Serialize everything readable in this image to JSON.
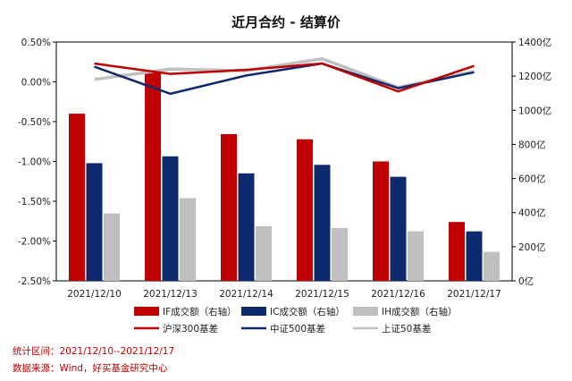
{
  "chart_data": {
    "type": "bar",
    "title": "近月合约 - 结算价",
    "categories": [
      "2021/12/10",
      "2021/12/13",
      "2021/12/14",
      "2021/12/15",
      "2021/12/16",
      "2021/12/17"
    ],
    "y_left": {
      "min": -2.5,
      "max": 0.5,
      "step": 0.5,
      "ticks": [
        "0.50%",
        "0.00%",
        "-0.50%",
        "-1.00%",
        "-1.50%",
        "-2.00%",
        "-2.50%"
      ]
    },
    "y_right": {
      "min": 0,
      "max": 1400,
      "step": 200,
      "ticks": [
        "1400亿",
        "1200亿",
        "1000亿",
        "800亿",
        "600亿",
        "400亿",
        "200亿",
        "0亿"
      ]
    },
    "bar_series": [
      {
        "name": "IF成交额（右轴）",
        "color": "#c00000",
        "values": [
          980,
          1230,
          860,
          830,
          700,
          345
        ]
      },
      {
        "name": "IC成交额（右轴）",
        "color": "#0d2a6e",
        "values": [
          690,
          730,
          630,
          680,
          610,
          290
        ]
      },
      {
        "name": "IH成交额（右轴）",
        "color": "#bfbfbf",
        "values": [
          395,
          485,
          320,
          310,
          290,
          170
        ]
      }
    ],
    "line_series": [
      {
        "name": "沪深300基差",
        "color": "#c00000",
        "values": [
          0.23,
          0.1,
          0.15,
          0.23,
          -0.12,
          0.2
        ]
      },
      {
        "name": "中证500基差",
        "color": "#0d2a6e",
        "values": [
          0.19,
          -0.15,
          0.08,
          0.23,
          -0.08,
          0.12
        ]
      },
      {
        "name": "上证50基差",
        "color": "#bfbfbf",
        "values": [
          0.03,
          0.16,
          0.14,
          0.29,
          -0.07,
          0.13
        ]
      }
    ]
  },
  "notes": {
    "range": "统计区间：2021/12/10--2021/12/17",
    "source": "数据来源：Wind，好买基金研究中心"
  }
}
